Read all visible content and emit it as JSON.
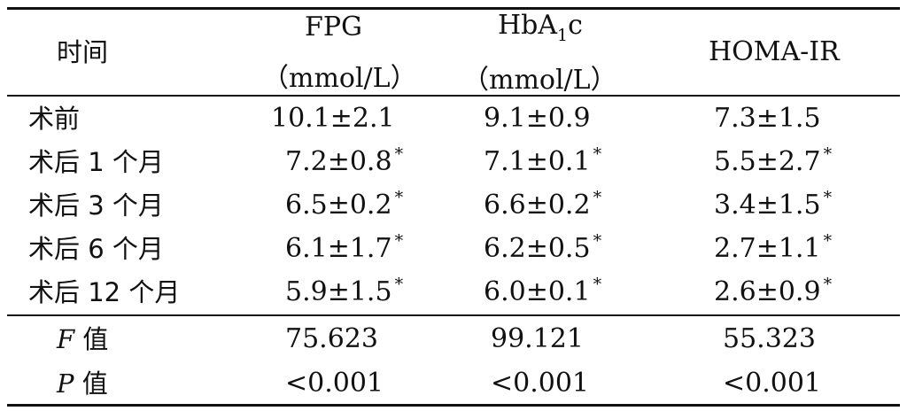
{
  "table": {
    "header": {
      "time": "时间",
      "fpg_line1": "FPG",
      "fpg_line2": "（mmol/L）",
      "hba_prefix": "HbA",
      "hba_sub": "1",
      "hba_suffix": "c",
      "hba_line2": "（mmol/L）",
      "homa": "HOMA-IR"
    },
    "rows": [
      {
        "time": "术前",
        "fpg": "10.1±2.1",
        "fpg_mark": "",
        "hba": "9.1±0.9",
        "hba_mark": "",
        "homa": "7.3±1.5",
        "homa_mark": ""
      },
      {
        "time": "术后 1 个月",
        "fpg": "7.2±0.8",
        "fpg_mark": "*",
        "hba": "7.1±0.1",
        "hba_mark": "*",
        "homa": "5.5±2.7",
        "homa_mark": "*"
      },
      {
        "time": "术后 3 个月",
        "fpg": "6.5±0.2",
        "fpg_mark": "*",
        "hba": "6.6±0.2",
        "hba_mark": "*",
        "homa": "3.4±1.5",
        "homa_mark": "*"
      },
      {
        "time": "术后 6 个月",
        "fpg": "6.1±1.7",
        "fpg_mark": "*",
        "hba": "6.2±0.5",
        "hba_mark": "*",
        "homa": "2.7±1.1",
        "homa_mark": "*"
      },
      {
        "time": "术后 12 个月",
        "fpg": "5.9±1.5",
        "fpg_mark": "*",
        "hba": "6.0±0.1",
        "hba_mark": "*",
        "homa": "2.6±0.9",
        "homa_mark": "*"
      }
    ],
    "stats": [
      {
        "letter": "F",
        "suffix": " 值",
        "fpg": "75.623",
        "hba": "99.121",
        "homa": "55.323"
      },
      {
        "letter": "P",
        "suffix": " 值",
        "fpg": "<0.001",
        "hba": "<0.001",
        "homa": "<0.001"
      }
    ]
  }
}
